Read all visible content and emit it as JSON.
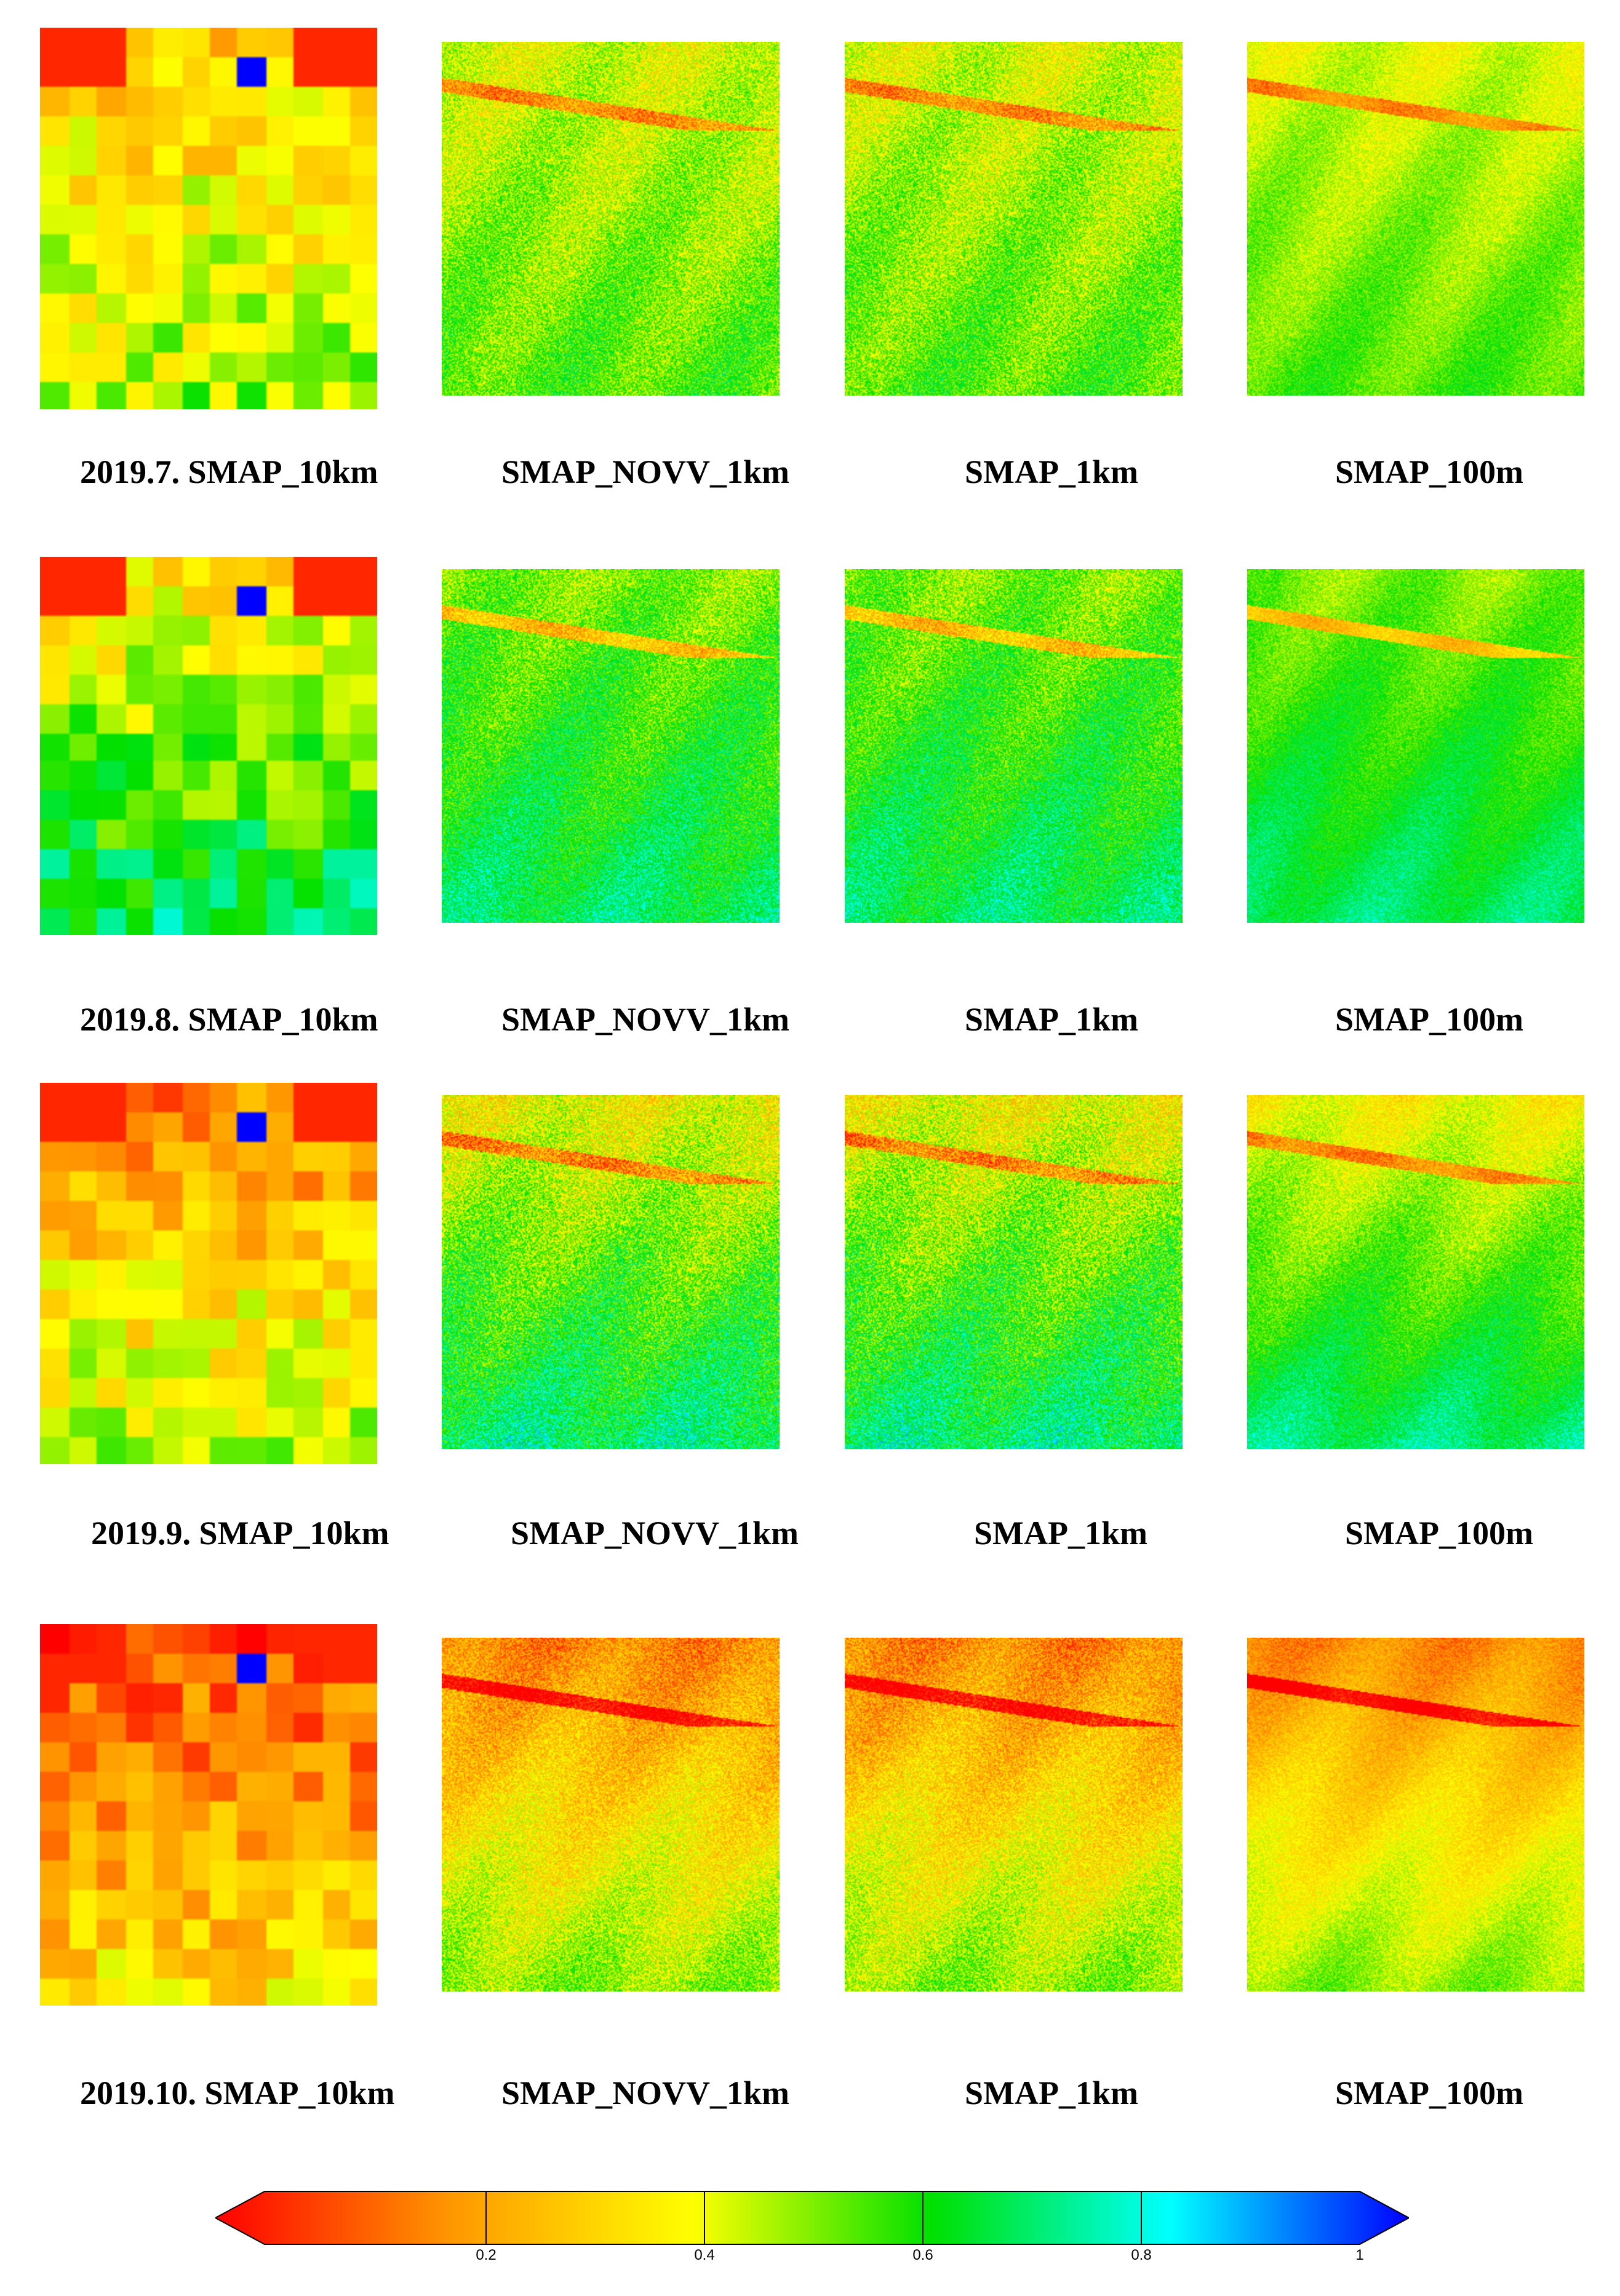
{
  "colors": {
    "stops": [
      "#ff0000",
      "#ff9900",
      "#ffff00",
      "#00e000",
      "#00ffff",
      "#0000ff"
    ]
  },
  "rows": [
    {
      "labels": [
        "2019.7. SMAP_10km",
        "SMAP_NOVV_1km",
        "SMAP_1km",
        "SMAP_100m"
      ]
    },
    {
      "labels": [
        "2019.8. SMAP_10km",
        "SMAP_NOVV_1km",
        "SMAP_1km",
        "SMAP_100m"
      ]
    },
    {
      "labels": [
        "2019.9. SMAP_10km",
        "SMAP_NOVV_1km",
        "SMAP_1km",
        "SMAP_100m"
      ]
    },
    {
      "labels": [
        "2019.10. SMAP_10km",
        "SMAP_NOVV_1km",
        "SMAP_1km",
        "SMAP_100m"
      ]
    }
  ],
  "colorbar": {
    "min": 0,
    "max": 1,
    "ticks": [
      "0.2",
      "0.4",
      "0.6",
      "0.8",
      "1"
    ]
  }
}
